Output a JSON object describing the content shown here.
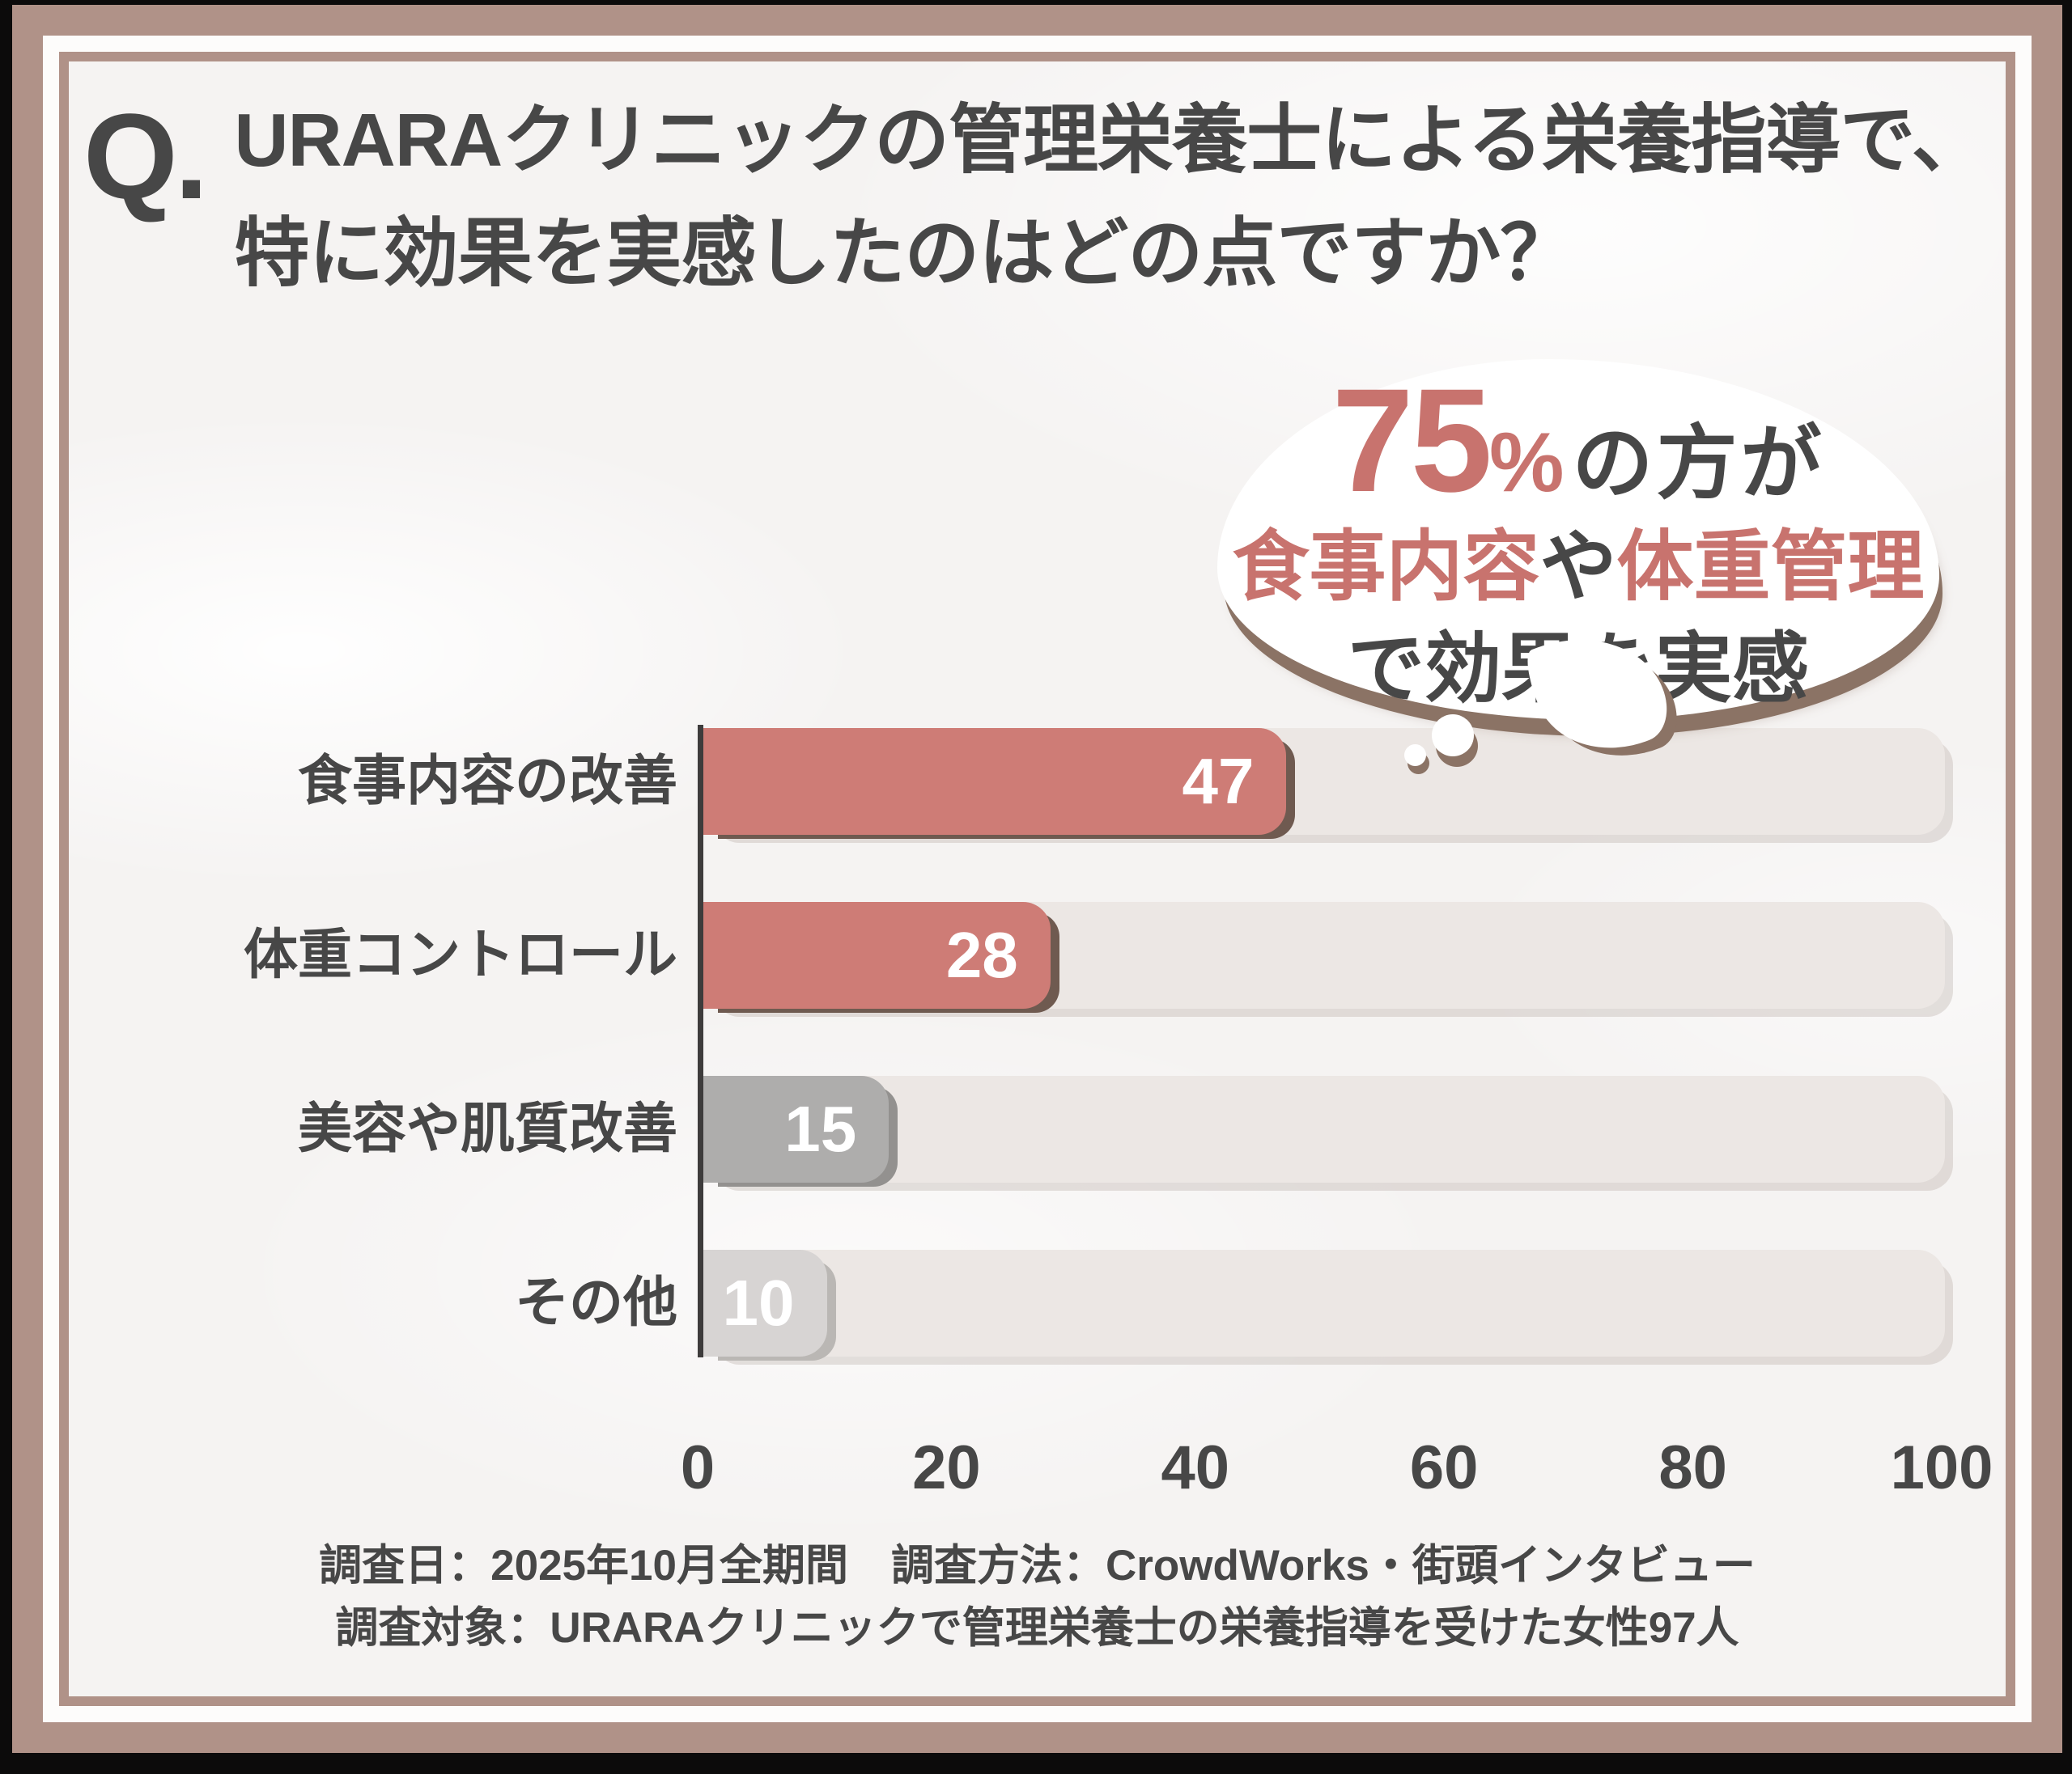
{
  "question": {
    "prefix": "Q.",
    "line1": "URARAクリニックの管理栄養士による栄養指導で、",
    "line2": "特に効果を実感したのはどの点ですか？"
  },
  "callout": {
    "percent_value": "75",
    "percent_sign": "%",
    "after_percent": "の方が",
    "emphasis1": "食事内容",
    "connector": "や",
    "emphasis2": "体重管理",
    "line3": "で効果を実感"
  },
  "chart_data": {
    "type": "bar",
    "orientation": "horizontal",
    "categories": [
      "食事内容の改善",
      "体重コントロール",
      "美容や肌質改善",
      "その他"
    ],
    "values": [
      47,
      28,
      15,
      10
    ],
    "bar_colors": [
      "#ce7c76",
      "#ce7c76",
      "#aeadac",
      "#d7d4d3"
    ],
    "bar_shadow_colors": [
      "#6f5a50",
      "#6f5a50",
      "#93918f",
      "#bab7b4"
    ],
    "xlim": [
      0,
      100
    ],
    "x_ticks": [
      0,
      20,
      40,
      60,
      80,
      100
    ],
    "grid": false,
    "legend": false,
    "value_label_color": "#ffffff",
    "track_color": "#ece7e4"
  },
  "footer": {
    "line1": "調査日：2025年10月全期間　調査方法：CrowdWorks・街頭インタビュー",
    "line2": "調査対象：URARAクリニックで管理栄養士の栄養指導を受けた女性97人"
  },
  "colors": {
    "frame": "#b09288",
    "accent_pink": "#ce7c76",
    "callout_pink": "#c8736e",
    "text_dark": "#474747",
    "track": "#ece7e4",
    "bubble_shadow": "#8b7365",
    "axis": "#3e3c3c"
  }
}
